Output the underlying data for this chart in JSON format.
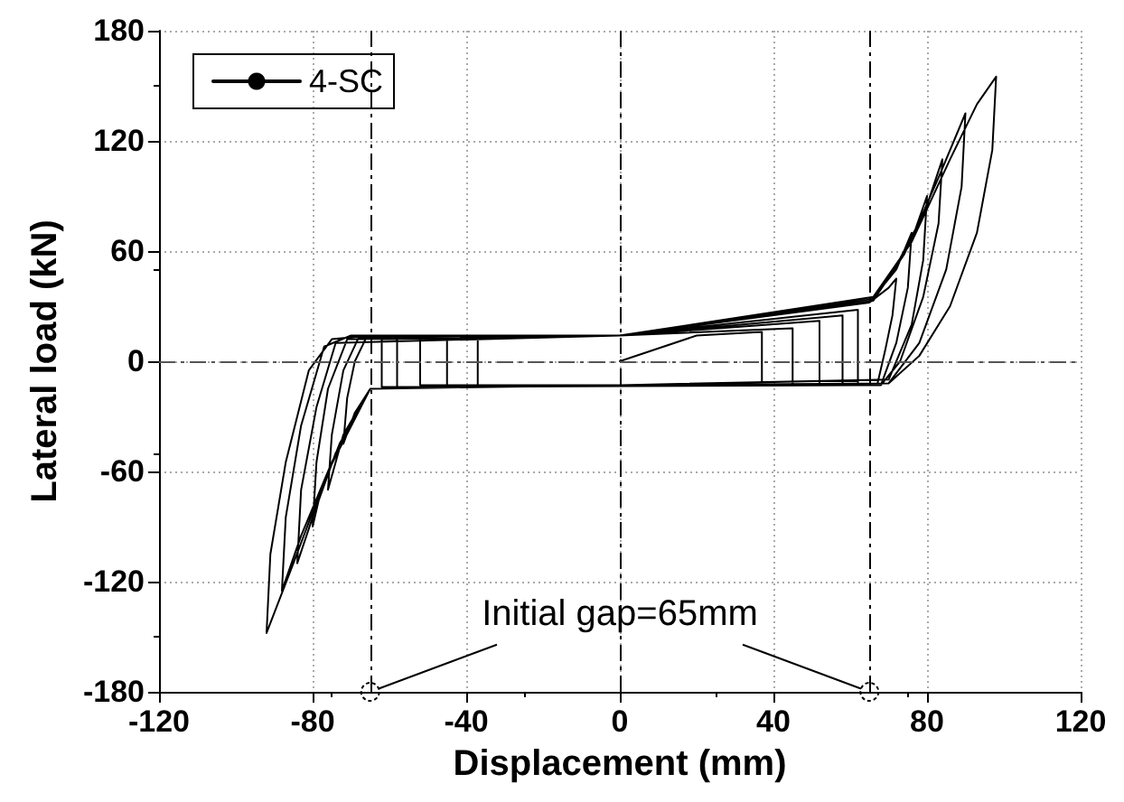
{
  "chart_data": {
    "type": "line",
    "xlabel": "Displacement (mm)",
    "ylabel": "Lateral load (kN)",
    "xlim": [
      -120,
      120
    ],
    "xticks": [
      -120,
      -80,
      -40,
      0,
      40,
      80,
      120
    ],
    "ylim": [
      -180,
      180
    ],
    "yticks": [
      -180,
      -120,
      -60,
      0,
      60,
      120,
      180
    ],
    "grid": true,
    "legend": "top left",
    "marker": "none",
    "line_style": "solid",
    "ref_lines": [
      {
        "axis": "x",
        "value": -65,
        "color": "#000000",
        "line_style": "dashed"
      },
      {
        "axis": "x",
        "value": 0,
        "color": "#000000",
        "line_style": "dashed"
      },
      {
        "axis": "x",
        "value": 65,
        "color": "#000000",
        "line_style": "dashed"
      },
      {
        "axis": "y",
        "value": 0,
        "color": "#555555",
        "line_style": "dashed"
      }
    ],
    "annotations": [
      "Initial gap=65mm"
    ],
    "x": [
      0,
      20,
      37,
      37,
      0,
      -37,
      -37,
      0,
      45,
      45,
      -45,
      -45,
      0,
      52,
      52,
      -52,
      -52,
      0,
      58,
      58,
      -58,
      -58,
      0,
      62,
      62,
      -62,
      -62,
      0,
      65,
      70,
      72,
      71,
      69,
      67,
      0,
      -65,
      -69,
      -72,
      -71,
      -69,
      -66,
      0,
      65,
      72,
      76,
      75,
      72,
      68,
      0,
      -65,
      -72,
      -76,
      -75,
      -72,
      -68,
      0,
      65,
      72,
      77,
      80,
      79,
      76,
      70,
      0,
      -65,
      -73,
      -78,
      -80,
      -79,
      -76,
      -71,
      0,
      66,
      74,
      80,
      84,
      83,
      79,
      73,
      68,
      0,
      -65,
      -74,
      -80,
      -84,
      -83,
      -79,
      -74,
      0,
      66,
      75,
      83,
      90,
      89,
      85,
      78,
      70,
      0,
      -65,
      -75,
      -83,
      -88,
      -87,
      -83,
      -77,
      -70,
      0,
      66,
      76,
      86,
      93,
      98,
      97,
      93,
      86,
      78,
      70,
      0,
      -65,
      -76,
      -85,
      -92,
      -91,
      -87,
      -81,
      -75,
      -65,
      0
    ],
    "series": [
      {
        "name": "4-SC",
        "color": "#000000",
        "values": [
          0,
          14,
          16,
          -13,
          -13,
          -13,
          13,
          14,
          18,
          -13,
          -13,
          13,
          14,
          22,
          -13,
          -13,
          13,
          14,
          25,
          -13,
          -14,
          13,
          14,
          28,
          -13,
          -14,
          12,
          14,
          32,
          40,
          45,
          25,
          5,
          -13,
          -13,
          -15,
          -28,
          -45,
          -20,
          0,
          13,
          14,
          32,
          50,
          70,
          40,
          10,
          -13,
          -13,
          -15,
          -40,
          -70,
          -40,
          -5,
          13,
          14,
          32,
          52,
          72,
          90,
          55,
          20,
          -10,
          -13,
          -15,
          -45,
          -72,
          -90,
          -55,
          -15,
          12,
          14,
          33,
          58,
          85,
          110,
          75,
          35,
          0,
          -13,
          -13,
          -15,
          -50,
          -85,
          -110,
          -70,
          -25,
          10,
          14,
          34,
          62,
          100,
          135,
          95,
          50,
          10,
          -12,
          -13,
          -15,
          -55,
          -95,
          -125,
          -85,
          -35,
          8,
          14,
          14,
          35,
          65,
          110,
          140,
          155,
          115,
          70,
          30,
          3,
          -12,
          -13,
          -15,
          -60,
          -110,
          -148,
          -105,
          -55,
          -5,
          12,
          14,
          14
        ]
      }
    ]
  }
}
